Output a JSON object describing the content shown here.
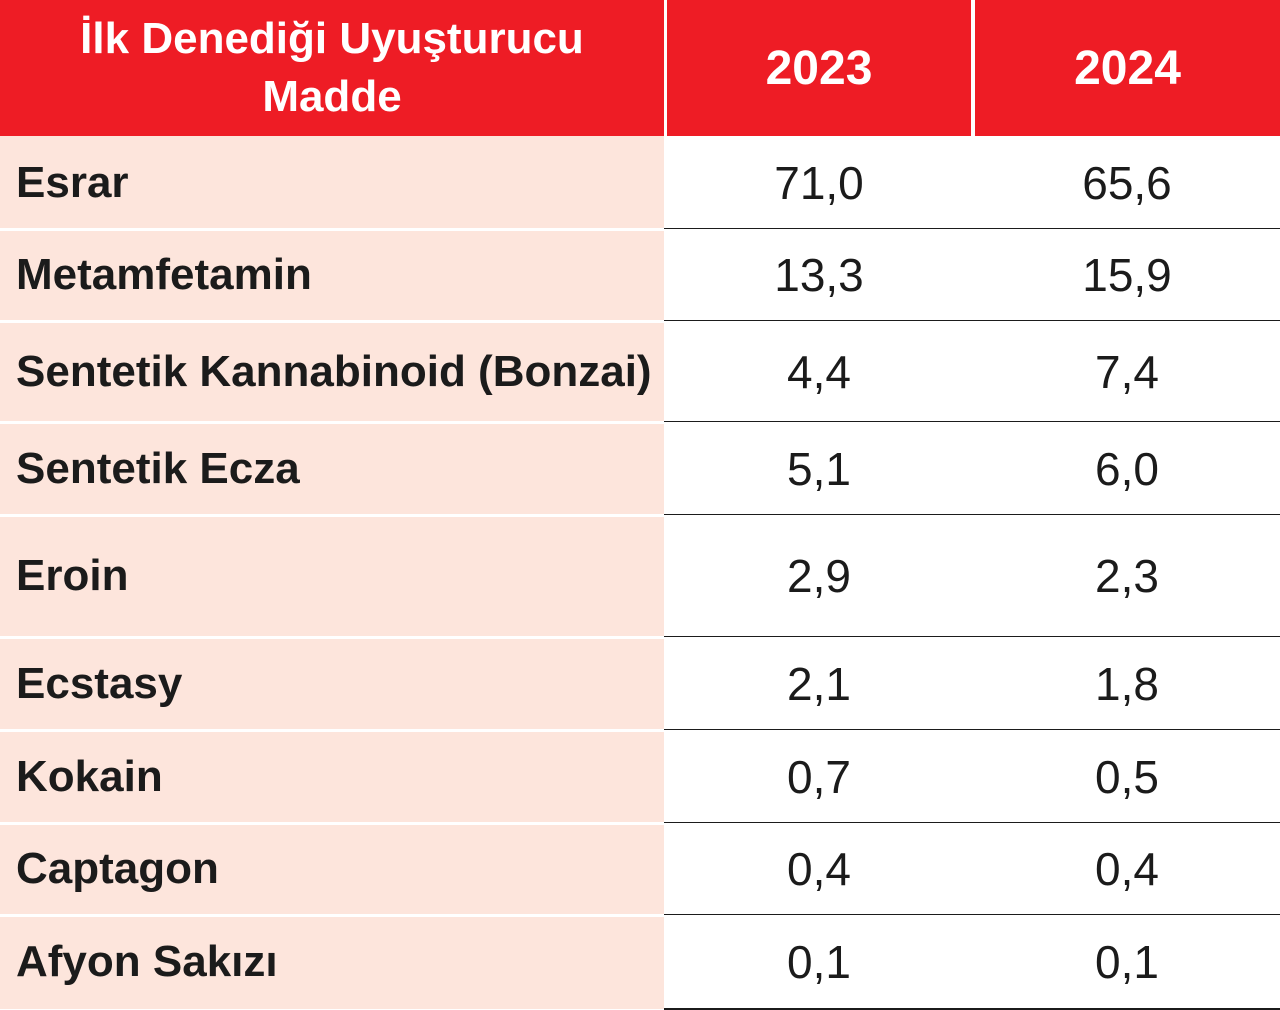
{
  "chart_data": {
    "type": "table",
    "columns": [
      "İlk Denediği Uyuşturucu Madde",
      "2023",
      "2024"
    ],
    "rows": [
      {
        "label": "Esrar",
        "v2023": "71,0",
        "v2024": "65,6"
      },
      {
        "label": "Metamfetamin",
        "v2023": "13,3",
        "v2024": "15,9"
      },
      {
        "label": "Sentetik Kannabinoid (Bonzai)",
        "v2023": "4,4",
        "v2024": "7,4"
      },
      {
        "label": "Sentetik Ecza",
        "v2023": "5,1",
        "v2024": "6,0"
      },
      {
        "label": "Eroin",
        "v2023": "2,9",
        "v2024": "2,3"
      },
      {
        "label": "Ecstasy",
        "v2023": "2,1",
        "v2024": "1,8"
      },
      {
        "label": "Kokain",
        "v2023": "0,7",
        "v2024": "0,5"
      },
      {
        "label": "Captagon",
        "v2023": "0,4",
        "v2024": "0,4"
      },
      {
        "label": "Afyon Sakızı",
        "v2023": "0,1",
        "v2024": "0,1"
      }
    ]
  },
  "colors": {
    "header_bg": "#ee1c25",
    "label_bg": "#fde5dc",
    "value_bg": "#ffffff",
    "text": "#1b1b1b"
  }
}
